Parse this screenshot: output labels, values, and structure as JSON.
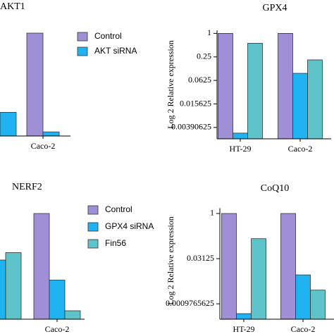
{
  "chart_data": [
    {
      "type": "bar",
      "title": "AKT1",
      "categories": [
        null,
        "Caco-2"
      ],
      "ylim": [
        0,
        1
      ],
      "series": [
        {
          "name": "Control",
          "color": "#9f8fd6",
          "values": [
            null,
            1
          ]
        },
        {
          "name": "AKT siRNA",
          "color": "#1fb3f2",
          "values": [
            0.23,
            0.04
          ]
        }
      ]
    },
    {
      "type": "bar",
      "title": "GPX4",
      "ylabel": "Log 2 Relative expression",
      "categories": [
        "HT-29",
        "Caco-2"
      ],
      "log_scale": true,
      "ylim": [
        0.002,
        1.2
      ],
      "yticks": [
        1,
        0.25,
        0.0625,
        0.015625,
        0.00390625
      ],
      "series": [
        {
          "color": "#9f8fd6",
          "values": [
            1,
            1
          ]
        },
        {
          "color": "#1fb3f2",
          "values": [
            0.0028,
            0.095
          ]
        },
        {
          "color": "#5fc4c9",
          "values": [
            0.56,
            0.21
          ]
        }
      ]
    },
    {
      "type": "bar",
      "title": "NERF2",
      "categories": [
        null,
        "Caco-2"
      ],
      "ylim": [
        0,
        1
      ],
      "series": [
        {
          "name": "Control",
          "color": "#9f8fd6",
          "values": [
            null,
            1
          ]
        },
        {
          "name": "GPX4 siRNA",
          "color": "#1fb3f2",
          "values": [
            0.56,
            0.37
          ]
        },
        {
          "name": "Fin56",
          "color": "#5fc4c9",
          "values": [
            0.63,
            0.08
          ]
        }
      ]
    },
    {
      "type": "bar",
      "title": "CoQ10",
      "ylabel": "Log 2 Relative expression",
      "categories": [
        "HT-29",
        "Caco-2"
      ],
      "log_scale": true,
      "ylim": [
        0.0003,
        1.5
      ],
      "yticks": [
        1,
        0.03125,
        0.0009765625
      ],
      "series": [
        {
          "color": "#9f8fd6",
          "values": [
            1,
            1
          ]
        },
        {
          "color": "#1fb3f2",
          "values": [
            0.00046,
            0.009
          ]
        },
        {
          "color": "#5fc4c9",
          "values": [
            0.145,
            0.0028
          ]
        }
      ]
    }
  ]
}
